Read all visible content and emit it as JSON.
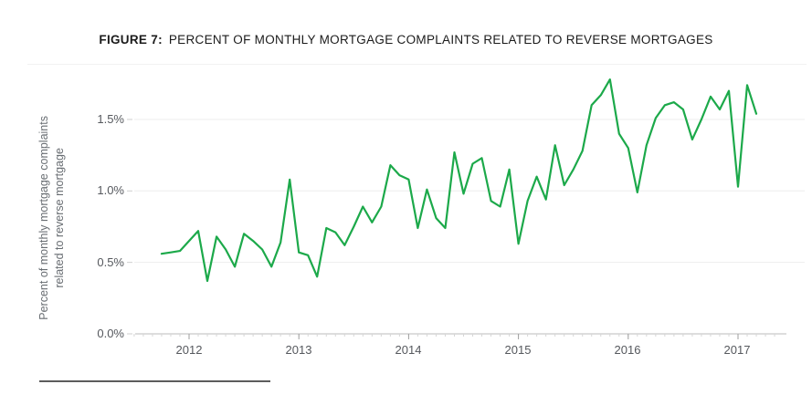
{
  "figure": {
    "label": "FIGURE 7:",
    "title": "PERCENT OF MONTHLY MORTGAGE COMPLAINTS RELATED TO REVERSE MORTGAGES"
  },
  "chart_data": {
    "type": "line",
    "title": "FIGURE 7: PERCENT OF MONTHLY MORTGAGE COMPLAINTS RELATED TO REVERSE MORTGAGES",
    "ylabel": "Percent of monthly mortgage complaints related to reverse mortgage",
    "ylabel_lines": [
      "Percent of monthly mortgage complaints",
      "related to reverse mortgage"
    ],
    "x_tick_labels": [
      "2012",
      "2013",
      "2014",
      "2015",
      "2016",
      "2017"
    ],
    "y_tick_labels": [
      "1.5%",
      "1.0%",
      "0.5%",
      "0.0%"
    ],
    "y_tick_values": [
      1.5,
      1.0,
      0.5,
      0.0
    ],
    "ylim": [
      0.0,
      1.9
    ],
    "grid": true,
    "legend": "none",
    "line_color": "#1ca94a",
    "x": [
      "2011-10",
      "2011-11",
      "2011-12",
      "2012-01",
      "2012-02",
      "2012-03",
      "2012-04",
      "2012-05",
      "2012-06",
      "2012-07",
      "2012-08",
      "2012-09",
      "2012-10",
      "2012-11",
      "2012-12",
      "2013-01",
      "2013-02",
      "2013-03",
      "2013-04",
      "2013-05",
      "2013-06",
      "2013-07",
      "2013-08",
      "2013-09",
      "2013-10",
      "2013-11",
      "2013-12",
      "2014-01",
      "2014-02",
      "2014-03",
      "2014-04",
      "2014-05",
      "2014-06",
      "2014-07",
      "2014-08",
      "2014-09",
      "2014-10",
      "2014-11",
      "2014-12",
      "2015-01",
      "2015-02",
      "2015-03",
      "2015-04",
      "2015-05",
      "2015-06",
      "2015-07",
      "2015-08",
      "2015-09",
      "2015-10",
      "2015-11",
      "2015-12",
      "2016-01",
      "2016-02",
      "2016-03",
      "2016-04",
      "2016-05",
      "2016-06",
      "2016-07",
      "2016-08",
      "2016-09",
      "2016-10",
      "2016-11",
      "2016-12",
      "2017-01",
      "2017-02",
      "2017-03"
    ],
    "values": [
      0.56,
      0.57,
      0.58,
      0.65,
      0.72,
      0.37,
      0.68,
      0.59,
      0.47,
      0.7,
      0.65,
      0.59,
      0.47,
      0.64,
      1.08,
      0.57,
      0.55,
      0.4,
      0.74,
      0.71,
      0.62,
      0.75,
      0.89,
      0.78,
      0.89,
      1.18,
      1.11,
      1.08,
      0.74,
      1.01,
      0.81,
      0.74,
      1.27,
      0.98,
      1.19,
      1.23,
      0.93,
      0.89,
      1.15,
      0.63,
      0.93,
      1.1,
      0.94,
      1.32,
      1.04,
      1.15,
      1.28,
      1.6,
      1.67,
      1.78,
      1.4,
      1.3,
      0.99,
      1.32,
      1.51,
      1.6,
      1.62,
      1.57,
      1.36,
      1.5,
      1.66,
      1.57,
      1.7,
      1.03,
      1.74,
      1.54
    ]
  }
}
